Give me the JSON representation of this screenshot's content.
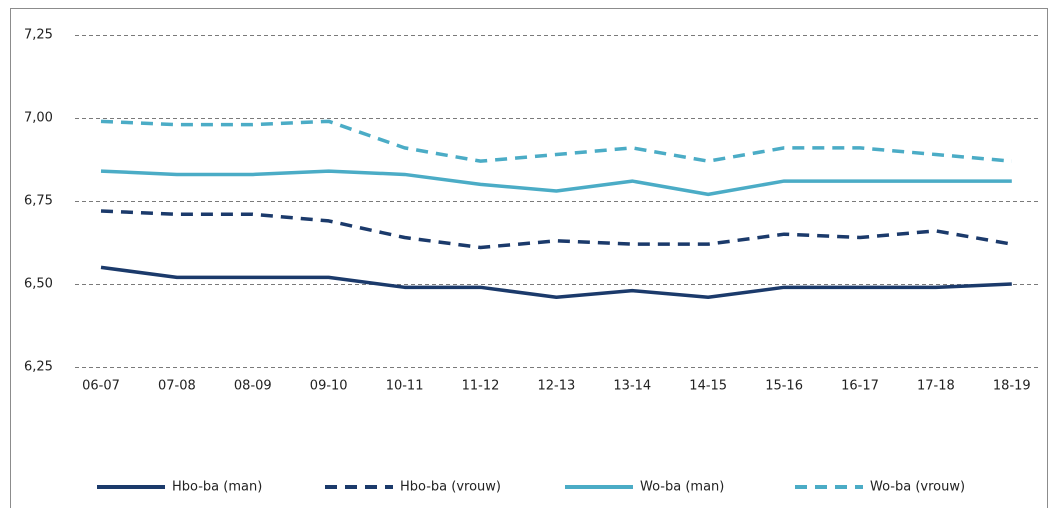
{
  "chart_data": {
    "type": "line",
    "categories": [
      "06-07",
      "07-08",
      "08-09",
      "09-10",
      "10-11",
      "11-12",
      "12-13",
      "13-14",
      "14-15",
      "15-16",
      "16-17",
      "17-18",
      "18-19"
    ],
    "ylim": [
      6.25,
      7.25
    ],
    "yticks": [
      {
        "value": 6.25,
        "label": "6,25"
      },
      {
        "value": 6.5,
        "label": "6,50"
      },
      {
        "value": 6.75,
        "label": "6,75"
      },
      {
        "value": 7.0,
        "label": "7,00"
      },
      {
        "value": 7.25,
        "label": "7,25"
      }
    ],
    "grid": true,
    "legend": "bottom",
    "series": [
      {
        "name": "Hbo-ba (man)",
        "color": "#1b3a6b",
        "dashed": false,
        "values": [
          6.55,
          6.52,
          6.52,
          6.52,
          6.49,
          6.49,
          6.46,
          6.48,
          6.46,
          6.49,
          6.49,
          6.49,
          6.5
        ]
      },
      {
        "name": "Hbo-ba (vrouw)",
        "color": "#1b3a6b",
        "dashed": true,
        "values": [
          6.72,
          6.71,
          6.71,
          6.69,
          6.64,
          6.61,
          6.63,
          6.62,
          6.62,
          6.65,
          6.64,
          6.66,
          6.62
        ]
      },
      {
        "name": "Wo-ba (man)",
        "color": "#4bacc6",
        "dashed": false,
        "values": [
          6.84,
          6.83,
          6.83,
          6.84,
          6.83,
          6.8,
          6.78,
          6.81,
          6.77,
          6.81,
          6.81,
          6.81,
          6.81
        ]
      },
      {
        "name": "Wo-ba (vrouw)",
        "color": "#4bacc6",
        "dashed": true,
        "values": [
          6.99,
          6.98,
          6.98,
          6.99,
          6.91,
          6.87,
          6.89,
          6.91,
          6.87,
          6.91,
          6.91,
          6.89,
          6.87
        ]
      }
    ]
  }
}
